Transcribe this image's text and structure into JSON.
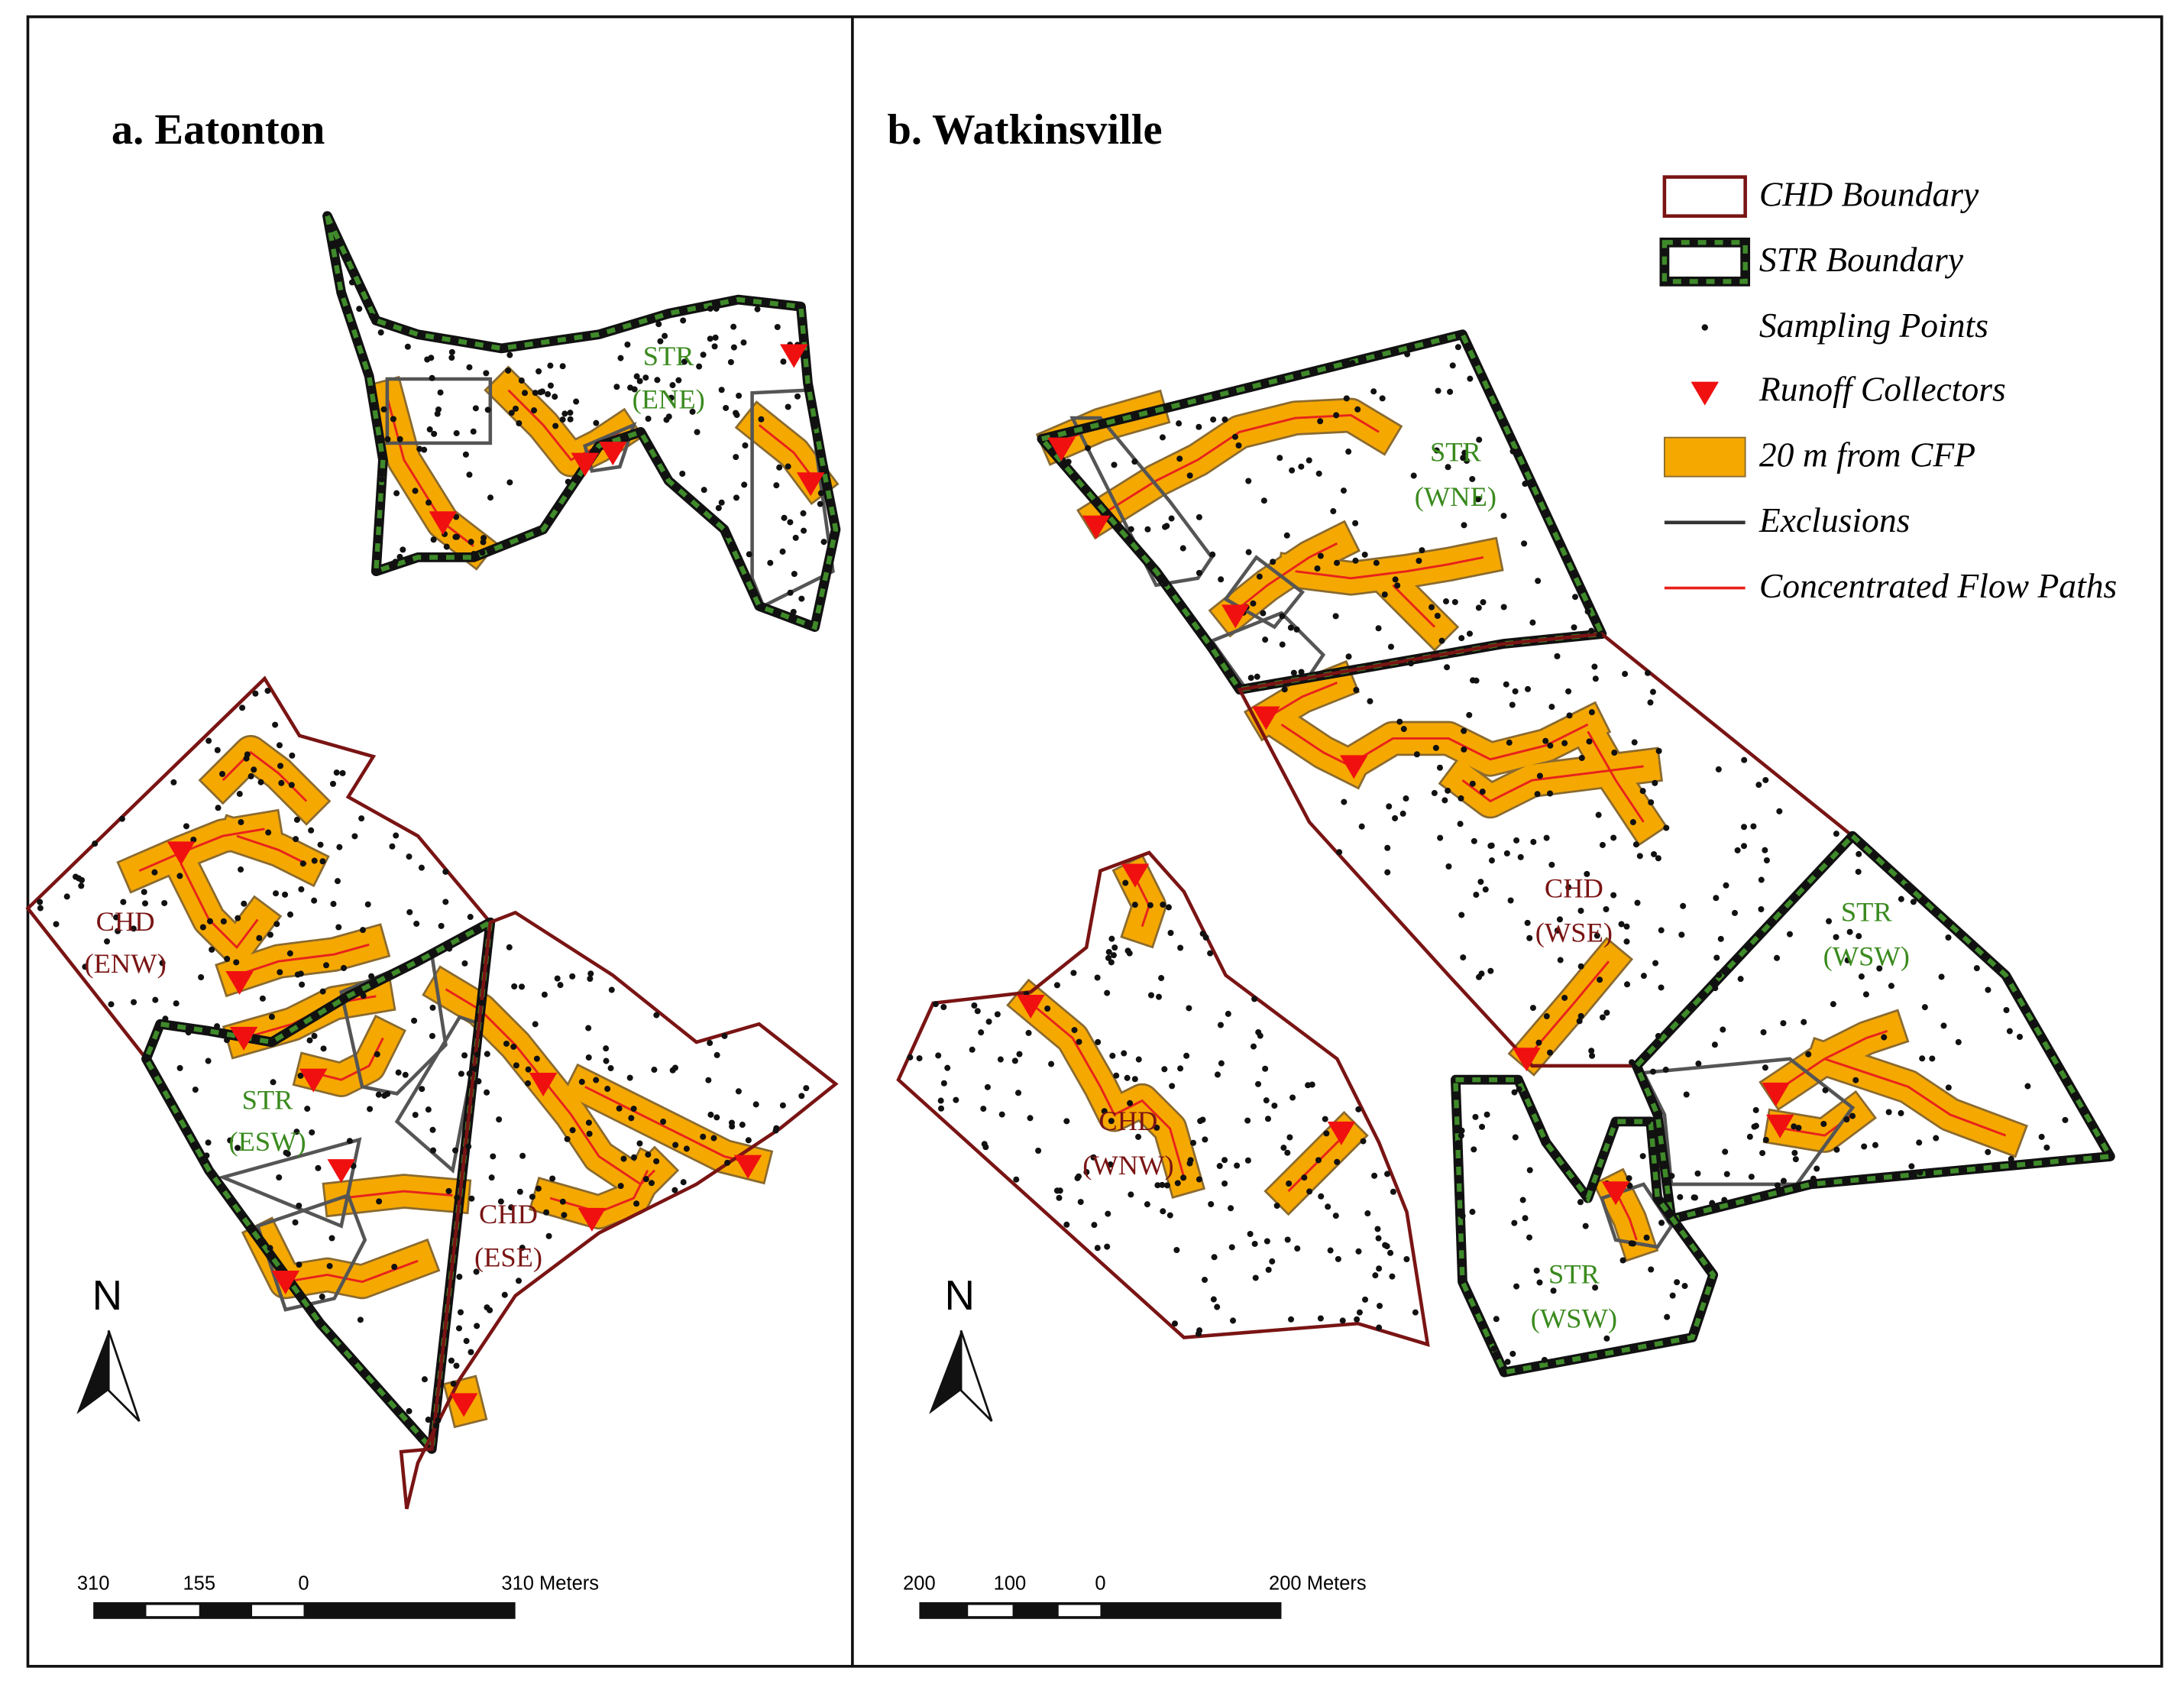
{
  "panels": [
    {
      "title": "a. Eatonton",
      "fields": [
        {
          "type": "STR",
          "name": "(ENE)"
        },
        {
          "type": "CHD",
          "name": "(ENW)"
        },
        {
          "type": "STR",
          "name": "(ESW)"
        },
        {
          "type": "CHD",
          "name": "(ESE)"
        }
      ],
      "north": "N",
      "scale_labels": [
        "310",
        "155",
        "0",
        "310 Meters"
      ]
    },
    {
      "title": "b. Watkinsville",
      "fields": [
        {
          "type": "STR",
          "name": "(WNE)"
        },
        {
          "type": "CHD",
          "name": "(WSE)"
        },
        {
          "type": "STR",
          "name": "(WSW)"
        },
        {
          "type": "CHD",
          "name": "(WNW)"
        },
        {
          "type": "STR",
          "name": "(WSW)"
        }
      ],
      "north": "N",
      "scale_labels": [
        "200",
        "100",
        "0",
        "200 Meters"
      ]
    }
  ],
  "legend": [
    "CHD Boundary",
    "STR Boundary",
    "Sampling Points",
    "Runoff Collectors",
    "20 m from CFP",
    "Exclusions",
    "Concentrated Flow Paths"
  ]
}
